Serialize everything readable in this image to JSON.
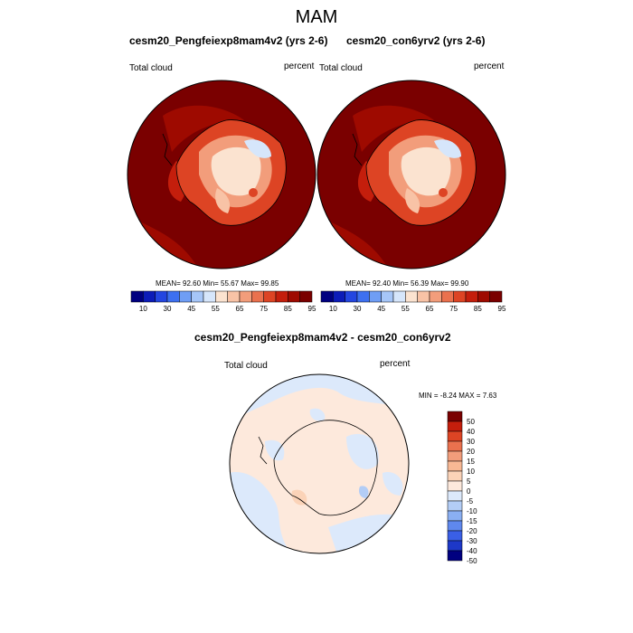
{
  "page_title": "MAM",
  "panels": [
    {
      "title": "cesm20_Pengfeiexp8mam4v2 (yrs 2-6)",
      "left_label": "Total cloud",
      "right_label": "percent",
      "stats": "MEAN=  92.60  Min=  55.67  Max=  99.85"
    },
    {
      "title": "cesm20_con6yrv2 (yrs 2-6)",
      "left_label": "Total cloud",
      "right_label": "percent",
      "stats": "MEAN=  92.40  Min=  56.39  Max=  99.90"
    }
  ],
  "abs_colorbar": {
    "colors": [
      "#000080",
      "#0c1cb8",
      "#2446e0",
      "#3d70f0",
      "#6f9ef5",
      "#a6c6f8",
      "#d6e6fb",
      "#fbe3d0",
      "#f8c3a6",
      "#f29d7b",
      "#ea714e",
      "#dd4424",
      "#c41e0c",
      "#9e0a00",
      "#7a0000"
    ],
    "tick_labels": [
      "10",
      "30",
      "45",
      "55",
      "65",
      "75",
      "85",
      "95"
    ]
  },
  "diff_panel": {
    "title": "cesm20_Pengfeiexp8mam4v2 - cesm20_con6yrv2",
    "left_label": "Total cloud",
    "right_label": "percent",
    "stats": "MIN =  -8.24 MAX =   7.63"
  },
  "diff_colorbar": {
    "colors": [
      "#7a0000",
      "#c41e0c",
      "#dd4424",
      "#ea714e",
      "#f29d7b",
      "#f8b894",
      "#fbd3b8",
      "#fde9dc",
      "#dce9fb",
      "#b3cdf6",
      "#8aaff2",
      "#5f88ee",
      "#3a5fe6",
      "#1d38c8",
      "#000080"
    ],
    "tick_labels": [
      "50",
      "40",
      "30",
      "20",
      "15",
      "10",
      "5",
      "0",
      "-5",
      "-10",
      "-15",
      "-20",
      "-30",
      "-40",
      "-50"
    ]
  }
}
